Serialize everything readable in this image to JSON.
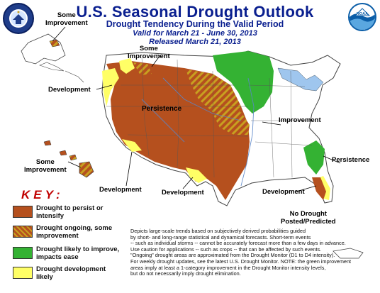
{
  "header": {
    "title": "U.S. Seasonal Drought Outlook",
    "subtitle": "Drought Tendency During the Valid Period",
    "valid": "Valid for March 21 - June 30, 2013",
    "released": "Released March 21, 2013"
  },
  "logos": {
    "left_seal_text": "DEPARTMENT OF COMMERCE",
    "right_logo_text": "NOAA"
  },
  "map_labels": {
    "alaska_improvement_1": "Some",
    "alaska_improvement_2": "Improvement",
    "nw_improvement_1": "Some",
    "nw_improvement_2": "Improvement",
    "west_development": "Development",
    "persistence_central": "Persistence",
    "improvement_east": "Improvement",
    "hawaii_improvement_1": "Some",
    "hawaii_improvement_2": "Improvement",
    "southwest_development": "Development",
    "texas_development": "Development",
    "southeast_persistence": "Persistence",
    "florida_development": "Development",
    "pr_no_drought_1": "No Drought",
    "pr_no_drought_2": "Posted/Predicted"
  },
  "key": {
    "title": "KEY:",
    "items": [
      {
        "line1": "Drought to persist or",
        "line2": "intensify",
        "color": "#b5501e"
      },
      {
        "line1": "Drought ongoing, some",
        "line2": "improvement",
        "color": "#b5501e"
      },
      {
        "line1": "Drought likely to improve,",
        "line2": "impacts ease",
        "color": "#34b233"
      },
      {
        "line1": "Drought development",
        "line2": "likely",
        "color": "#ffff66"
      }
    ]
  },
  "note_lines": [
    "Depicts large-scale trends based on subjectively derived probabilities guided",
    "by short- and long-range statistical and dynamical forecasts. Short-term events",
    "-- such as individual storms -- cannot be accurately forecast more than a few days in advance.",
    "Use caution for applications -- such as crops -- that can be affected by such events.",
    "\"Ongoing\" drought areas are approximated from the Drought Monitor (D1 to D4 intensity).",
    "For weekly drought updates, see the latest U.S. Drought Monitor. NOTE: the green improvement",
    "areas imply at least a 1-category improvement in the Drought Monitor intensity levels,",
    "but do not necessarily imply drought elimination."
  ],
  "colors": {
    "persist": "#b5501e",
    "improve": "#34b233",
    "develop": "#ffff66",
    "hatch": "#c8a020",
    "water": "#9fc6ee",
    "text_blue": "#0a1f8f"
  }
}
